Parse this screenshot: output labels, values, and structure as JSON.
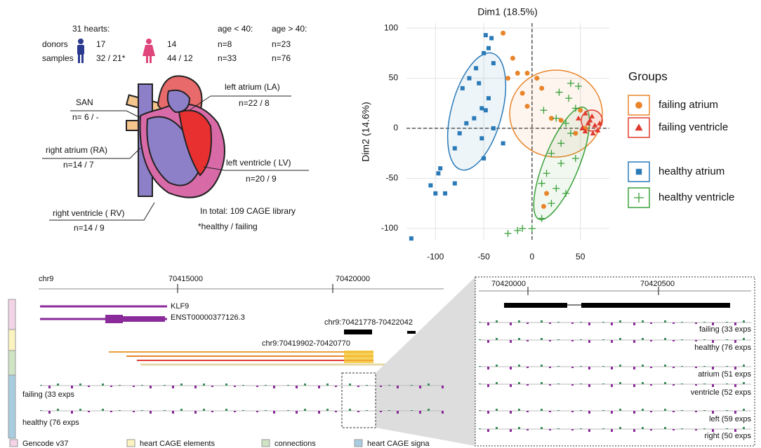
{
  "heart_panel": {
    "header": [
      "31 hearts:",
      "age < 40:",
      "age > 40:"
    ],
    "rows": [
      {
        "label": "donors",
        "cells": [
          "17",
          "14",
          "n=8",
          "n=23"
        ]
      },
      {
        "label": "samples",
        "cells": [
          "32 / 21*",
          "44 / 12",
          "n=33",
          "n=76"
        ]
      }
    ],
    "chambers": [
      {
        "name": "SAN",
        "n": "n= 6 / -"
      },
      {
        "name": "left atrium (LA)",
        "n": "n=22 / 8"
      },
      {
        "name": "right atrium (RA)",
        "n": "n=14 / 7"
      },
      {
        "name": "left ventricle ( LV)",
        "n": "n=20 / 9"
      },
      {
        "name": "right ventricle ( RV)",
        "n": "n=14 / 9"
      }
    ],
    "note": [
      "In total: 109 CAGE library",
      "*healthy / failing"
    ]
  },
  "chart_data": {
    "type": "scatter",
    "title": "Dim1 (18.5%)",
    "y_label": "Dim2 (14.6%)",
    "legend_title": "Groups",
    "xlim": [
      -130,
      80
    ],
    "ylim": [
      -112,
      105
    ],
    "xticks": [
      -100,
      -50,
      0,
      50
    ],
    "yticks": [
      -100,
      -50,
      0,
      50,
      100
    ],
    "grid": true,
    "series": [
      {
        "name": "failing atrium",
        "color": "#e8852a",
        "marker": "circle",
        "x": [
          -30,
          -20,
          -15,
          -25,
          -5,
          -10,
          5,
          10,
          20,
          50,
          30,
          45,
          55,
          15,
          12,
          -5
        ],
        "values": [
          95,
          70,
          55,
          50,
          55,
          35,
          50,
          40,
          10,
          18,
          8,
          -5,
          0,
          -65,
          -78,
          22
        ]
      },
      {
        "name": "failing ventricle",
        "color": "#e03a2e",
        "marker": "triangle",
        "x": [
          48,
          55,
          62,
          58,
          65,
          52,
          68,
          60,
          70,
          55,
          63
        ],
        "values": [
          10,
          15,
          12,
          5,
          3,
          0,
          -2,
          8,
          5,
          -3,
          -5
        ]
      },
      {
        "name": "healthy atrium",
        "color": "#2a7ab8",
        "marker": "square",
        "x": [
          -48,
          -42,
          -45,
          -50,
          -40,
          -58,
          -55,
          -65,
          -72,
          -45,
          -52,
          -48,
          -60,
          -75,
          -68,
          -52,
          -80,
          -95,
          -97,
          -80,
          -100,
          -90,
          -125,
          -105,
          -40,
          -50,
          -30
        ],
        "values": [
          93,
          90,
          80,
          75,
          65,
          60,
          45,
          50,
          40,
          30,
          20,
          18,
          10,
          -5,
          5,
          -10,
          -20,
          -40,
          -45,
          -55,
          -65,
          -65,
          -110,
          -57,
          0,
          -30,
          -15
        ]
      },
      {
        "name": "healthy ventricle",
        "color": "#3aa03a",
        "marker": "plus",
        "x": [
          40,
          48,
          28,
          38,
          12,
          45,
          25,
          35,
          40,
          30,
          20,
          45,
          15,
          10,
          25,
          35,
          20,
          10,
          0,
          -10,
          -25,
          -15,
          30
        ],
        "values": [
          45,
          42,
          36,
          30,
          18,
          20,
          10,
          5,
          -5,
          -15,
          -25,
          -30,
          -45,
          -55,
          -60,
          -65,
          -75,
          -90,
          -100,
          -100,
          -105,
          -102,
          -35
        ]
      }
    ]
  },
  "browser": {
    "chrom": "chr9",
    "ticks": [
      "70415000",
      "70420000"
    ],
    "genes": [
      "KLF9",
      "ENST00000377126.3"
    ],
    "regions": [
      "chr9:70421778-70422042",
      "chr9:70419902-70420770"
    ],
    "tracks": [
      "failing (33 exps",
      "healthy (76 exps"
    ],
    "legend": [
      "Gencode v37",
      "heart CAGE elements",
      "connections",
      "heart CAGE signa"
    ]
  },
  "zoom": {
    "ticks": [
      "70420000",
      "70420500"
    ],
    "tracks": [
      "failing (33 exps",
      "healthy (76 exps",
      "atrium (51 exps",
      "ventricle (52 exps",
      "left (59 exps",
      "right (50 exps"
    ]
  }
}
